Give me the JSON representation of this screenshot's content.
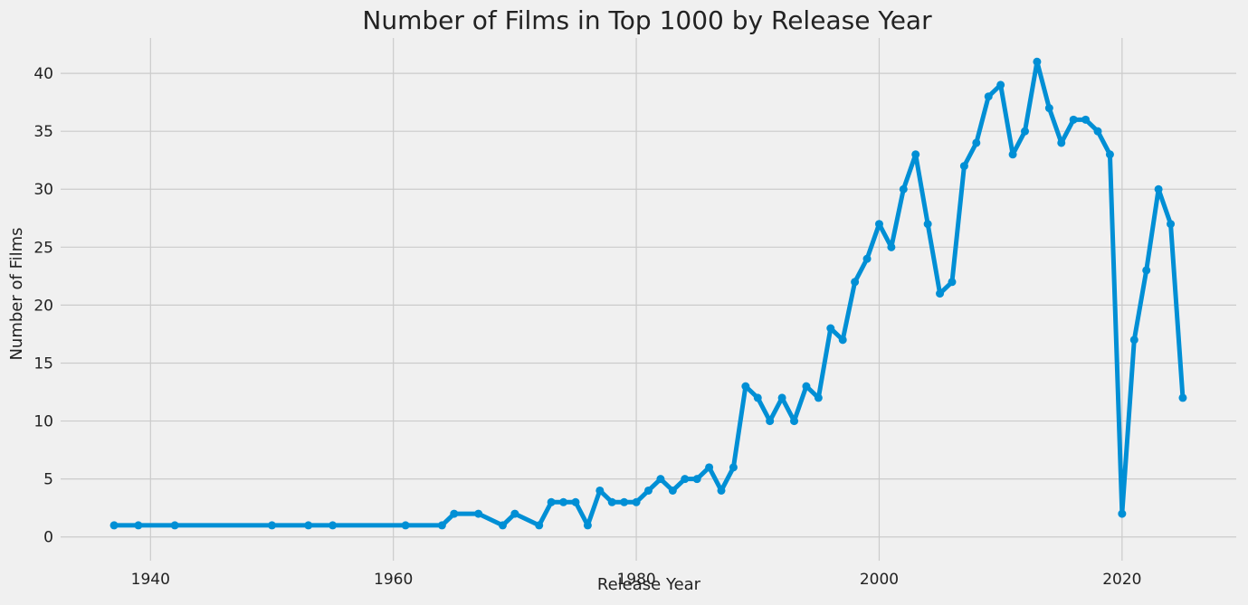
{
  "chart_data": {
    "type": "line",
    "title": "Number of Films in Top 1000 by Release Year",
    "xlabel": "Release Year",
    "ylabel": "Number of Films",
    "xlim": [
      1933.6,
      1929.0
    ],
    "ylim": [
      -2.05,
      43.05
    ],
    "x_ticks": [
      1940,
      1960,
      1980,
      2000,
      2020
    ],
    "y_ticks": [
      0,
      5,
      10,
      15,
      20,
      25,
      30,
      35,
      40
    ],
    "grid": true,
    "legend": "none",
    "colors": {
      "line": "#008fd5",
      "background": "#f0f0f0",
      "grid": "#cbcbcb"
    },
    "series": [
      {
        "x": [
          1937,
          1939,
          1942,
          1950,
          1953,
          1955,
          1961,
          1964,
          1965,
          1967,
          1969,
          1970,
          1972,
          1973,
          1974,
          1975,
          1976,
          1977,
          1978,
          1979,
          1980,
          1981,
          1982,
          1983,
          1984,
          1985,
          1986,
          1987,
          1988,
          1989,
          1990,
          1991,
          1992,
          1993,
          1994,
          1995,
          1996,
          1997,
          1998,
          1999,
          2000,
          2001,
          2002,
          2003,
          2004,
          2005,
          2006,
          2007,
          2008,
          2009,
          2010,
          2011,
          2012,
          2013,
          2014,
          2015,
          2016,
          2017,
          2018,
          2019,
          2020,
          2021,
          2022,
          2023,
          2024,
          2025
        ],
        "values": [
          1,
          1,
          1,
          1,
          1,
          1,
          1,
          1,
          2,
          2,
          1,
          2,
          1,
          3,
          3,
          3,
          1,
          4,
          3,
          3,
          3,
          4,
          5,
          4,
          5,
          5,
          6,
          4,
          6,
          13,
          12,
          10,
          12,
          10,
          13,
          12,
          18,
          17,
          22,
          24,
          27,
          25,
          30,
          33,
          27,
          21,
          22,
          32,
          34,
          38,
          39,
          33,
          35,
          41,
          37,
          34,
          36,
          36,
          35,
          33,
          2,
          17,
          23,
          30,
          27,
          12
        ]
      }
    ]
  }
}
